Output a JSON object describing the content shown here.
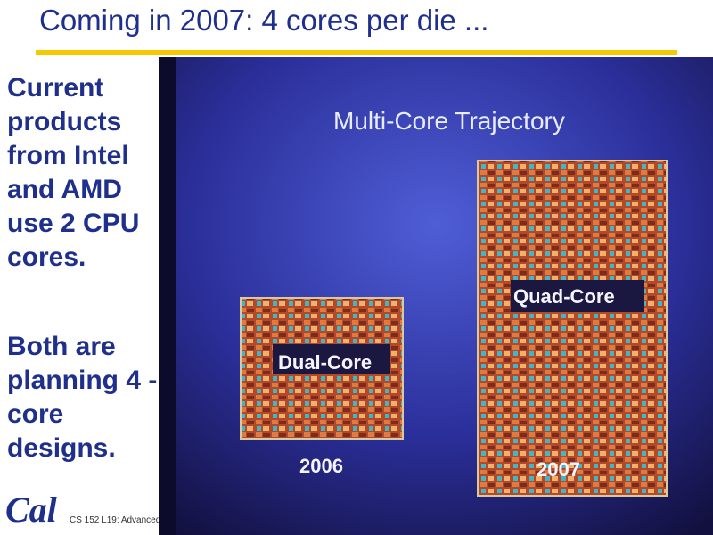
{
  "slide": {
    "title": "Coming in 2007: 4 cores per die ...",
    "bullet_1": "Current products from Intel and AMD use 2 CPU cores.",
    "bullet_2": "Both are planning 4 -core designs.",
    "footer": "CS 152 L19: Advanced"
  },
  "photo": {
    "heading": "Multi-Core Trajectory",
    "dual_label": "Dual-Core",
    "quad_label": "Quad-Core",
    "year_dual": "2006",
    "year_quad": "2007"
  },
  "logo": {
    "text": "Cal"
  },
  "colors": {
    "title": "#1f2f8c",
    "rule": "#f5c800"
  }
}
